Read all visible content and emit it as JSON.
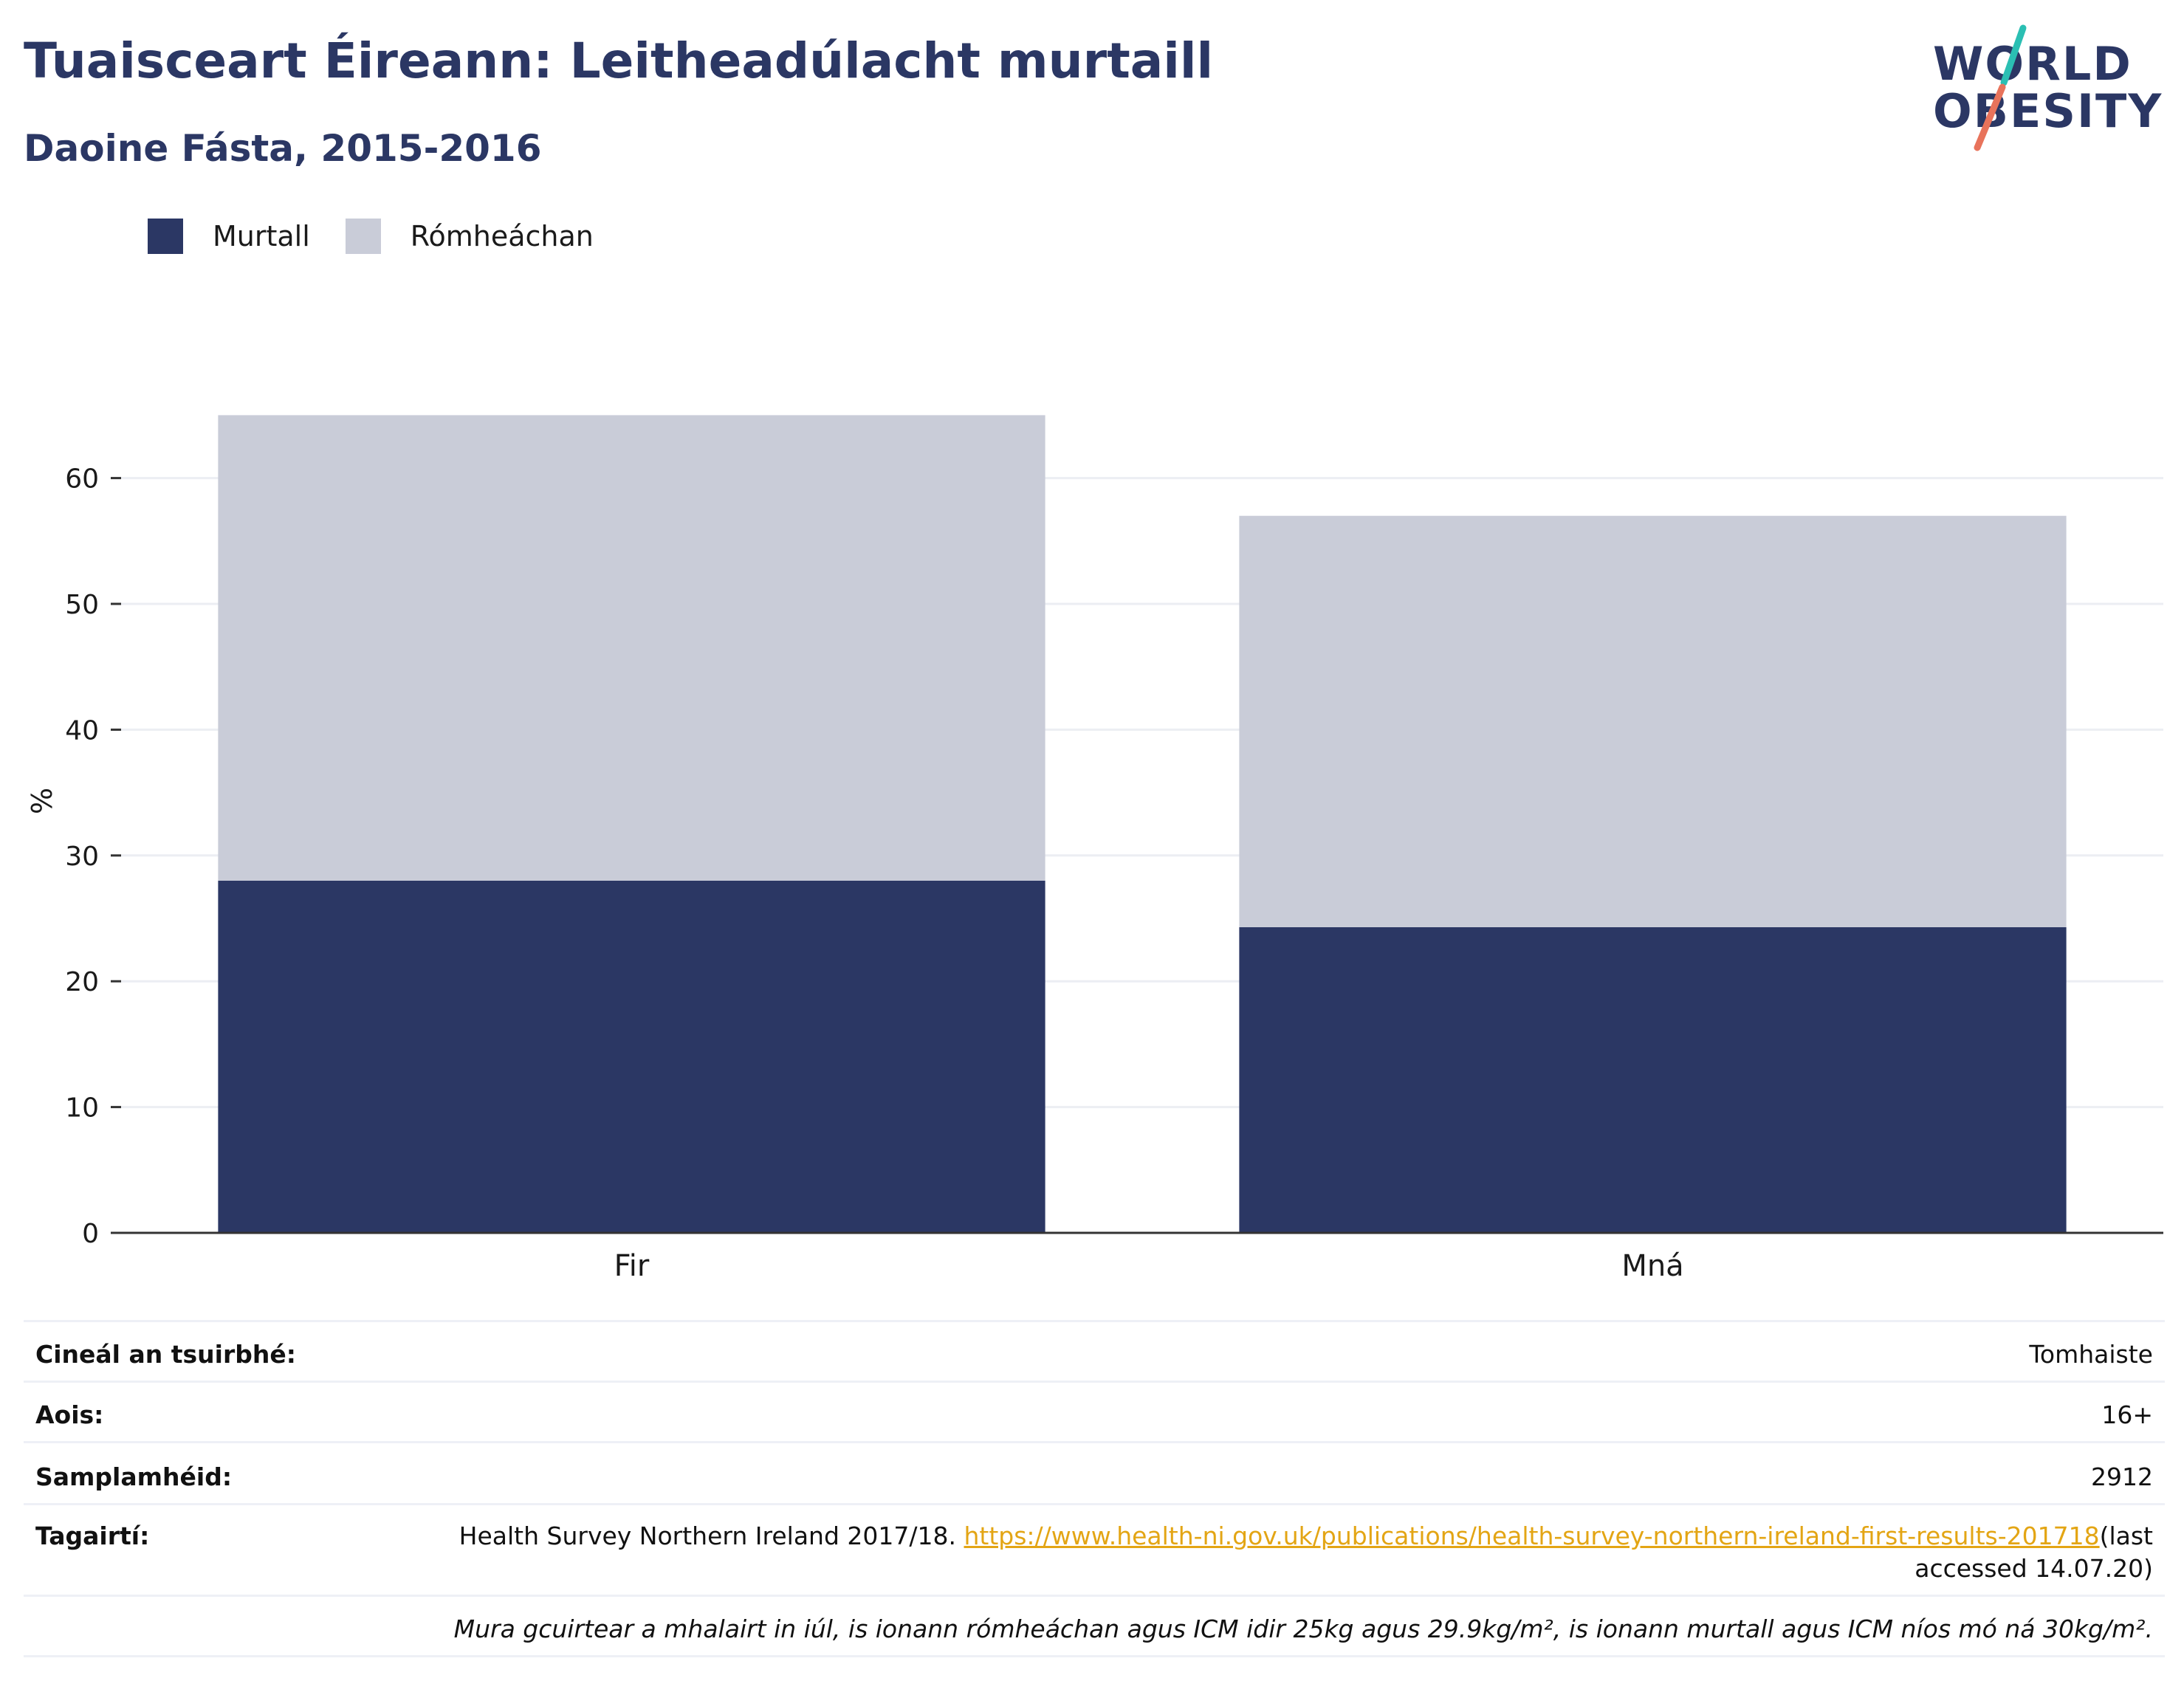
{
  "header": {
    "title": "Tuaisceart Éireann: Leitheadúlacht murtaill",
    "subtitle": "Daoine Fásta, 2015-2016"
  },
  "logo": {
    "line1": "WORLD",
    "line2": "OBESITY",
    "colors": {
      "text": "#2b3764",
      "slash_top": "#2bbfb3",
      "slash_bottom": "#e8735b"
    }
  },
  "legend": {
    "items": [
      {
        "label": "Murtall",
        "color": "#2b3764"
      },
      {
        "label": "Rómheáchan",
        "color": "#c9ccd8"
      }
    ]
  },
  "chart_data": {
    "type": "bar",
    "stacked": true,
    "categories": [
      "Fir",
      "Mná"
    ],
    "series": [
      {
        "name": "Murtall",
        "values": [
          28,
          24.3
        ],
        "color": "#2b3764"
      },
      {
        "name": "Rómheáchan",
        "values": [
          37,
          32.7
        ],
        "color": "#c9ccd8"
      }
    ],
    "ylabel": "%",
    "xlabel": "",
    "ylim": [
      0,
      65
    ],
    "yticks": [
      0,
      10,
      20,
      30,
      40,
      50,
      60
    ],
    "grid": true,
    "legend_position": "top-left"
  },
  "info": {
    "survey_type_label": "Cineál an tsuirbhé:",
    "survey_type_value": "Tomhaiste",
    "age_label": "Aois:",
    "age_value": "16+",
    "sample_label": "Samplamhéid:",
    "sample_value": "2912",
    "refs_label": "Tagairtí:",
    "refs_text": "Health Survey Northern Ireland 2017/18. ",
    "refs_link": "https://www.health-ni.gov.uk/publications/health-survey-northern-ireland-first-results-201718",
    "refs_suffix": "(last accessed 14.07.20)",
    "note": "Mura gcuirtear a mhalairt in iúl, is ionann rómheáchan agus ICM idir 25kg agus 29.9kg/m², is ionann murtall agus ICM níos mó ná 30kg/m²."
  }
}
